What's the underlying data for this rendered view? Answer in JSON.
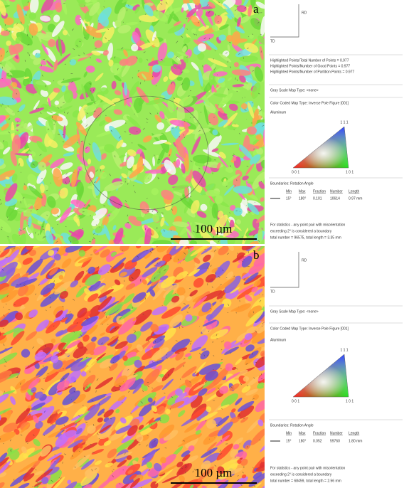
{
  "panels": [
    {
      "label": "a",
      "scale_bar": "100 µm",
      "axes": {
        "rd": "RD",
        "td": "TD"
      },
      "highlight_lines": [
        "Highlighted Points/Total Number of Points = 0.977",
        "Highlighted Points/Number of Good Points = 0.977",
        "Highlighted Points/Number of Partition Points = 0.977"
      ],
      "gray_scale": "Gray Scale Map Type: <none>",
      "color_coded": "Color Coded Map Type: Inverse Pole Figure [001]",
      "phase": "Aluminum",
      "ipf_labels": [
        "1 1 1",
        "0 0 1",
        "1 0 1"
      ],
      "boundaries_title": "Boundaries: Rotation Angle",
      "boundary_table": {
        "header": [
          "Min",
          "Max",
          "Fraction",
          "Number",
          "Length"
        ],
        "row": [
          "15°",
          "180°",
          "0.101",
          "10614",
          "0.97 mm"
        ]
      },
      "statistics_note": [
        "For statistics - any point pair with misorientation",
        "exceeding 2° is considered a boundary",
        "total number = 96575, total length = 3.35 mm"
      ]
    },
    {
      "label": "b",
      "scale_bar": "100 µm",
      "axes": {
        "rd": "RD",
        "td": "TD"
      },
      "gray_scale": "Gray Scale Map Type: <none>",
      "color_coded": "Color Coded Map Type: Inverse Pole Figure [001]",
      "phase": "Aluminum",
      "ipf_labels": [
        "1 1 1",
        "0 0 1",
        "1 0 1"
      ],
      "boundaries_title": "Boundaries: Rotation Angle",
      "boundary_table": {
        "header": [
          "Min",
          "Max",
          "Fraction",
          "Number",
          "Length"
        ],
        "row": [
          "15°",
          "180°",
          "0.052",
          "59760",
          "1.80 mm"
        ]
      },
      "statistics_note": [
        "For statistics - any point pair with misorientation",
        "exceeding 2° is considered a boundary",
        "total number = 68459, total length = 2.56 mm"
      ]
    }
  ]
}
